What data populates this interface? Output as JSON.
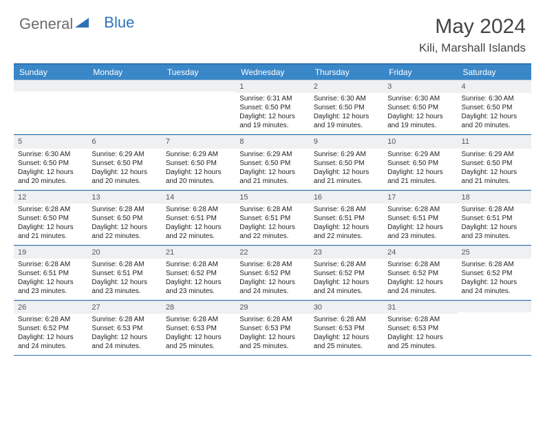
{
  "brand": {
    "part1": "General",
    "part2": "Blue"
  },
  "title": "May 2024",
  "location": "Kili, Marshall Islands",
  "colors": {
    "accent": "#3a87c8",
    "accent_border": "#2d72b5",
    "daynum_bg": "#eef0f2",
    "text": "#222222",
    "muted": "#555555"
  },
  "day_names": [
    "Sunday",
    "Monday",
    "Tuesday",
    "Wednesday",
    "Thursday",
    "Friday",
    "Saturday"
  ],
  "weeks": [
    [
      {
        "empty": true
      },
      {
        "empty": true
      },
      {
        "empty": true
      },
      {
        "n": "1",
        "sunrise": "Sunrise: 6:31 AM",
        "sunset": "Sunset: 6:50 PM",
        "daylight": "Daylight: 12 hours and 19 minutes."
      },
      {
        "n": "2",
        "sunrise": "Sunrise: 6:30 AM",
        "sunset": "Sunset: 6:50 PM",
        "daylight": "Daylight: 12 hours and 19 minutes."
      },
      {
        "n": "3",
        "sunrise": "Sunrise: 6:30 AM",
        "sunset": "Sunset: 6:50 PM",
        "daylight": "Daylight: 12 hours and 19 minutes."
      },
      {
        "n": "4",
        "sunrise": "Sunrise: 6:30 AM",
        "sunset": "Sunset: 6:50 PM",
        "daylight": "Daylight: 12 hours and 20 minutes."
      }
    ],
    [
      {
        "n": "5",
        "sunrise": "Sunrise: 6:30 AM",
        "sunset": "Sunset: 6:50 PM",
        "daylight": "Daylight: 12 hours and 20 minutes."
      },
      {
        "n": "6",
        "sunrise": "Sunrise: 6:29 AM",
        "sunset": "Sunset: 6:50 PM",
        "daylight": "Daylight: 12 hours and 20 minutes."
      },
      {
        "n": "7",
        "sunrise": "Sunrise: 6:29 AM",
        "sunset": "Sunset: 6:50 PM",
        "daylight": "Daylight: 12 hours and 20 minutes."
      },
      {
        "n": "8",
        "sunrise": "Sunrise: 6:29 AM",
        "sunset": "Sunset: 6:50 PM",
        "daylight": "Daylight: 12 hours and 21 minutes."
      },
      {
        "n": "9",
        "sunrise": "Sunrise: 6:29 AM",
        "sunset": "Sunset: 6:50 PM",
        "daylight": "Daylight: 12 hours and 21 minutes."
      },
      {
        "n": "10",
        "sunrise": "Sunrise: 6:29 AM",
        "sunset": "Sunset: 6:50 PM",
        "daylight": "Daylight: 12 hours and 21 minutes."
      },
      {
        "n": "11",
        "sunrise": "Sunrise: 6:29 AM",
        "sunset": "Sunset: 6:50 PM",
        "daylight": "Daylight: 12 hours and 21 minutes."
      }
    ],
    [
      {
        "n": "12",
        "sunrise": "Sunrise: 6:28 AM",
        "sunset": "Sunset: 6:50 PM",
        "daylight": "Daylight: 12 hours and 21 minutes."
      },
      {
        "n": "13",
        "sunrise": "Sunrise: 6:28 AM",
        "sunset": "Sunset: 6:50 PM",
        "daylight": "Daylight: 12 hours and 22 minutes."
      },
      {
        "n": "14",
        "sunrise": "Sunrise: 6:28 AM",
        "sunset": "Sunset: 6:51 PM",
        "daylight": "Daylight: 12 hours and 22 minutes."
      },
      {
        "n": "15",
        "sunrise": "Sunrise: 6:28 AM",
        "sunset": "Sunset: 6:51 PM",
        "daylight": "Daylight: 12 hours and 22 minutes."
      },
      {
        "n": "16",
        "sunrise": "Sunrise: 6:28 AM",
        "sunset": "Sunset: 6:51 PM",
        "daylight": "Daylight: 12 hours and 22 minutes."
      },
      {
        "n": "17",
        "sunrise": "Sunrise: 6:28 AM",
        "sunset": "Sunset: 6:51 PM",
        "daylight": "Daylight: 12 hours and 23 minutes."
      },
      {
        "n": "18",
        "sunrise": "Sunrise: 6:28 AM",
        "sunset": "Sunset: 6:51 PM",
        "daylight": "Daylight: 12 hours and 23 minutes."
      }
    ],
    [
      {
        "n": "19",
        "sunrise": "Sunrise: 6:28 AM",
        "sunset": "Sunset: 6:51 PM",
        "daylight": "Daylight: 12 hours and 23 minutes."
      },
      {
        "n": "20",
        "sunrise": "Sunrise: 6:28 AM",
        "sunset": "Sunset: 6:51 PM",
        "daylight": "Daylight: 12 hours and 23 minutes."
      },
      {
        "n": "21",
        "sunrise": "Sunrise: 6:28 AM",
        "sunset": "Sunset: 6:52 PM",
        "daylight": "Daylight: 12 hours and 23 minutes."
      },
      {
        "n": "22",
        "sunrise": "Sunrise: 6:28 AM",
        "sunset": "Sunset: 6:52 PM",
        "daylight": "Daylight: 12 hours and 24 minutes."
      },
      {
        "n": "23",
        "sunrise": "Sunrise: 6:28 AM",
        "sunset": "Sunset: 6:52 PM",
        "daylight": "Daylight: 12 hours and 24 minutes."
      },
      {
        "n": "24",
        "sunrise": "Sunrise: 6:28 AM",
        "sunset": "Sunset: 6:52 PM",
        "daylight": "Daylight: 12 hours and 24 minutes."
      },
      {
        "n": "25",
        "sunrise": "Sunrise: 6:28 AM",
        "sunset": "Sunset: 6:52 PM",
        "daylight": "Daylight: 12 hours and 24 minutes."
      }
    ],
    [
      {
        "n": "26",
        "sunrise": "Sunrise: 6:28 AM",
        "sunset": "Sunset: 6:52 PM",
        "daylight": "Daylight: 12 hours and 24 minutes."
      },
      {
        "n": "27",
        "sunrise": "Sunrise: 6:28 AM",
        "sunset": "Sunset: 6:53 PM",
        "daylight": "Daylight: 12 hours and 24 minutes."
      },
      {
        "n": "28",
        "sunrise": "Sunrise: 6:28 AM",
        "sunset": "Sunset: 6:53 PM",
        "daylight": "Daylight: 12 hours and 25 minutes."
      },
      {
        "n": "29",
        "sunrise": "Sunrise: 6:28 AM",
        "sunset": "Sunset: 6:53 PM",
        "daylight": "Daylight: 12 hours and 25 minutes."
      },
      {
        "n": "30",
        "sunrise": "Sunrise: 6:28 AM",
        "sunset": "Sunset: 6:53 PM",
        "daylight": "Daylight: 12 hours and 25 minutes."
      },
      {
        "n": "31",
        "sunrise": "Sunrise: 6:28 AM",
        "sunset": "Sunset: 6:53 PM",
        "daylight": "Daylight: 12 hours and 25 minutes."
      },
      {
        "empty": true
      }
    ]
  ]
}
